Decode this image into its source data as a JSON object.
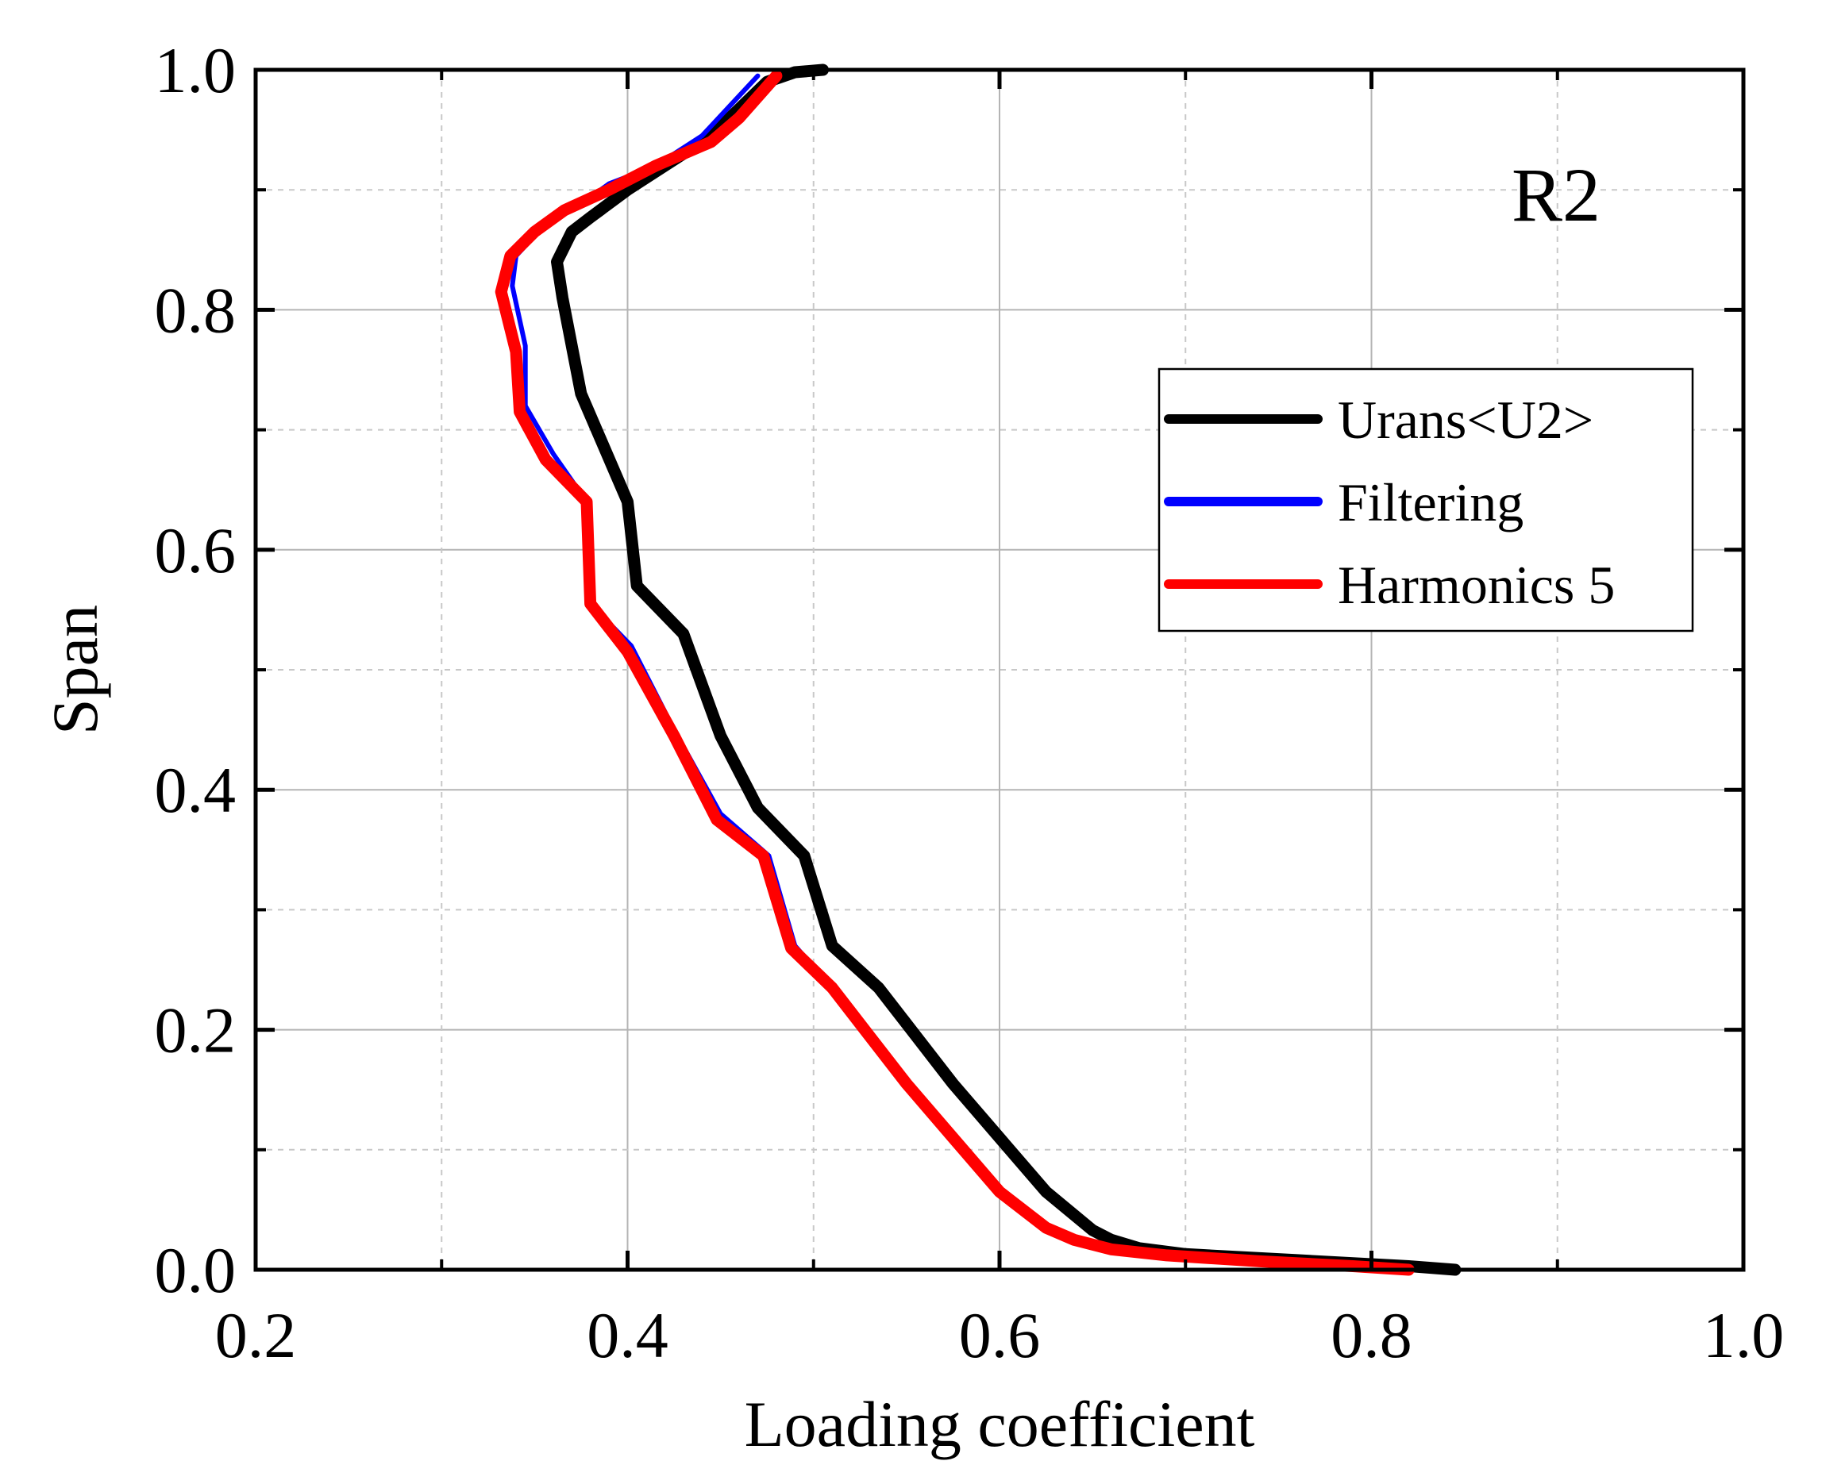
{
  "chart_data": {
    "type": "line",
    "panel_label": "R2",
    "xlabel": "Loading coefficient",
    "ylabel": "Span",
    "xlim": [
      0.2,
      1.0
    ],
    "ylim": [
      0.0,
      1.0
    ],
    "x_ticks": [
      "0.2",
      "0.4",
      "0.6",
      "0.8",
      "1.0"
    ],
    "y_ticks": [
      "0.0",
      "0.2",
      "0.4",
      "0.6",
      "0.8",
      "1.0"
    ],
    "x_major_values": [
      0.2,
      0.4,
      0.6,
      0.8,
      1.0
    ],
    "y_major_values": [
      0.0,
      0.2,
      0.4,
      0.6,
      0.8,
      1.0
    ],
    "x_minor_values": [
      0.3,
      0.5,
      0.7,
      0.9
    ],
    "y_minor_values": [
      0.1,
      0.3,
      0.5,
      0.7,
      0.9
    ],
    "grid": true,
    "legend_position": "upper-right",
    "series": [
      {
        "name": "Urans<U2>",
        "color": "#000000",
        "points": [
          [
            0.845,
            0.0
          ],
          [
            0.82,
            0.003
          ],
          [
            0.76,
            0.008
          ],
          [
            0.7,
            0.013
          ],
          [
            0.675,
            0.018
          ],
          [
            0.66,
            0.025
          ],
          [
            0.65,
            0.033
          ],
          [
            0.625,
            0.065
          ],
          [
            0.6,
            0.11
          ],
          [
            0.575,
            0.155
          ],
          [
            0.555,
            0.195
          ],
          [
            0.535,
            0.235
          ],
          [
            0.51,
            0.27
          ],
          [
            0.495,
            0.345
          ],
          [
            0.47,
            0.385
          ],
          [
            0.45,
            0.445
          ],
          [
            0.43,
            0.53
          ],
          [
            0.405,
            0.57
          ],
          [
            0.4,
            0.64
          ],
          [
            0.375,
            0.73
          ],
          [
            0.365,
            0.81
          ],
          [
            0.362,
            0.84
          ],
          [
            0.37,
            0.865
          ],
          [
            0.38,
            0.877
          ],
          [
            0.4,
            0.9
          ],
          [
            0.42,
            0.92
          ],
          [
            0.445,
            0.945
          ],
          [
            0.465,
            0.975
          ],
          [
            0.475,
            0.99
          ],
          [
            0.49,
            0.998
          ],
          [
            0.505,
            1.0
          ]
        ]
      },
      {
        "name": "Filtering",
        "color": "#0000ff",
        "points": [
          [
            0.82,
            0.0
          ],
          [
            0.79,
            0.003
          ],
          [
            0.74,
            0.007
          ],
          [
            0.69,
            0.012
          ],
          [
            0.66,
            0.017
          ],
          [
            0.64,
            0.025
          ],
          [
            0.625,
            0.035
          ],
          [
            0.6,
            0.065
          ],
          [
            0.575,
            0.11
          ],
          [
            0.55,
            0.155
          ],
          [
            0.53,
            0.195
          ],
          [
            0.51,
            0.235
          ],
          [
            0.49,
            0.27
          ],
          [
            0.476,
            0.345
          ],
          [
            0.45,
            0.38
          ],
          [
            0.425,
            0.45
          ],
          [
            0.402,
            0.52
          ],
          [
            0.38,
            0.555
          ],
          [
            0.378,
            0.64
          ],
          [
            0.36,
            0.68
          ],
          [
            0.345,
            0.72
          ],
          [
            0.345,
            0.77
          ],
          [
            0.338,
            0.82
          ],
          [
            0.34,
            0.845
          ],
          [
            0.355,
            0.87
          ],
          [
            0.372,
            0.885
          ],
          [
            0.39,
            0.905
          ],
          [
            0.415,
            0.92
          ],
          [
            0.44,
            0.945
          ],
          [
            0.455,
            0.97
          ],
          [
            0.47,
            0.995
          ]
        ]
      },
      {
        "name": "Harmonics 5",
        "color": "#ff0000",
        "points": [
          [
            0.82,
            0.0
          ],
          [
            0.79,
            0.003
          ],
          [
            0.74,
            0.007
          ],
          [
            0.69,
            0.012
          ],
          [
            0.66,
            0.017
          ],
          [
            0.64,
            0.025
          ],
          [
            0.625,
            0.035
          ],
          [
            0.6,
            0.065
          ],
          [
            0.575,
            0.11
          ],
          [
            0.55,
            0.155
          ],
          [
            0.53,
            0.195
          ],
          [
            0.51,
            0.235
          ],
          [
            0.488,
            0.268
          ],
          [
            0.473,
            0.345
          ],
          [
            0.448,
            0.375
          ],
          [
            0.425,
            0.445
          ],
          [
            0.4,
            0.515
          ],
          [
            0.38,
            0.555
          ],
          [
            0.378,
            0.64
          ],
          [
            0.356,
            0.675
          ],
          [
            0.342,
            0.715
          ],
          [
            0.34,
            0.765
          ],
          [
            0.332,
            0.815
          ],
          [
            0.337,
            0.845
          ],
          [
            0.35,
            0.865
          ],
          [
            0.366,
            0.883
          ],
          [
            0.39,
            0.9
          ],
          [
            0.415,
            0.92
          ],
          [
            0.445,
            0.94
          ],
          [
            0.46,
            0.96
          ],
          [
            0.48,
            0.995
          ]
        ]
      }
    ]
  }
}
